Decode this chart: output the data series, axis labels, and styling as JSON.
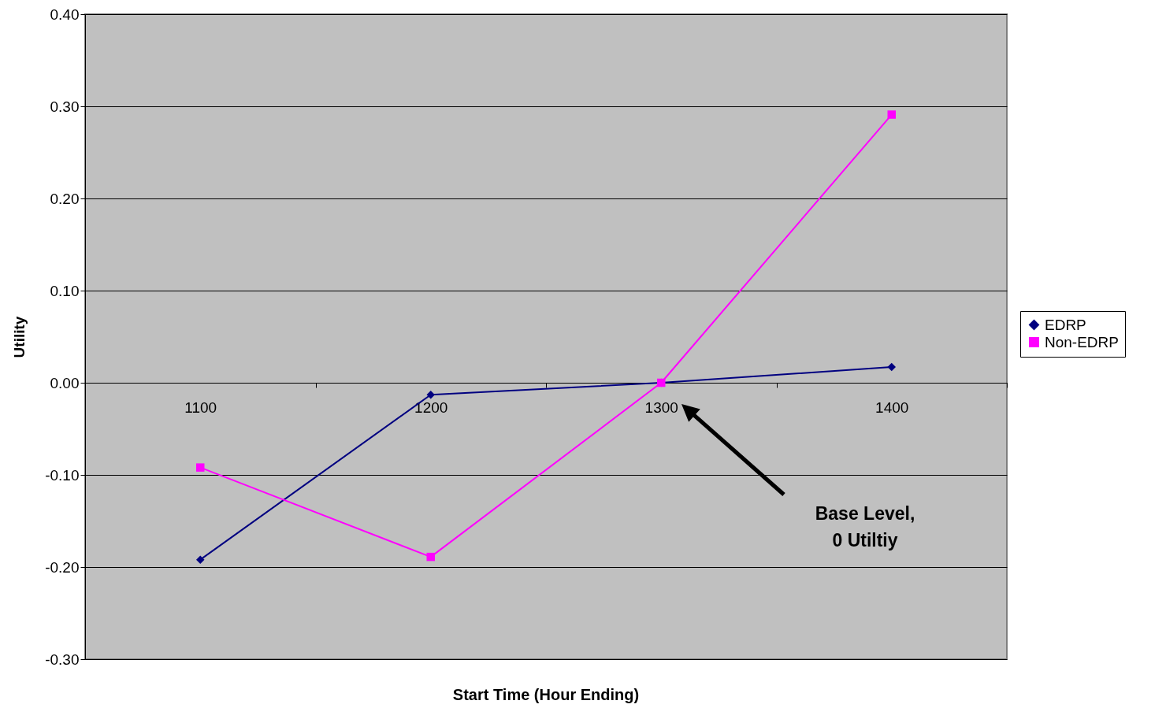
{
  "chart_data": {
    "type": "line",
    "xlabel": "Start Time (Hour Ending)",
    "ylabel": "Utility",
    "categories": [
      "1100",
      "1200",
      "1300",
      "1400"
    ],
    "series": [
      {
        "name": "EDRP",
        "color": "#000080",
        "marker": "diamond",
        "values": [
          -0.192,
          -0.013,
          0,
          0.017
        ]
      },
      {
        "name": "Non-EDRP",
        "color": "#ff00ff",
        "marker": "square",
        "values": [
          -0.092,
          -0.189,
          0,
          0.291
        ]
      }
    ],
    "ylim": [
      -0.3,
      0.4
    ],
    "yticks": [
      {
        "value": -0.3,
        "label": "-0.30"
      },
      {
        "value": -0.2,
        "label": "-0.20"
      },
      {
        "value": -0.1,
        "label": "-0.10"
      },
      {
        "value": 0,
        "label": "0.00"
      },
      {
        "value": 0.1,
        "label": "0.10"
      },
      {
        "value": 0.2,
        "label": "0.20"
      },
      {
        "value": 0.3,
        "label": "0.30"
      },
      {
        "value": 0.4,
        "label": "0.40"
      }
    ],
    "grid": "y",
    "legend": "right",
    "annotations": [
      "Base Level,\n0 Utiltiy"
    ]
  }
}
